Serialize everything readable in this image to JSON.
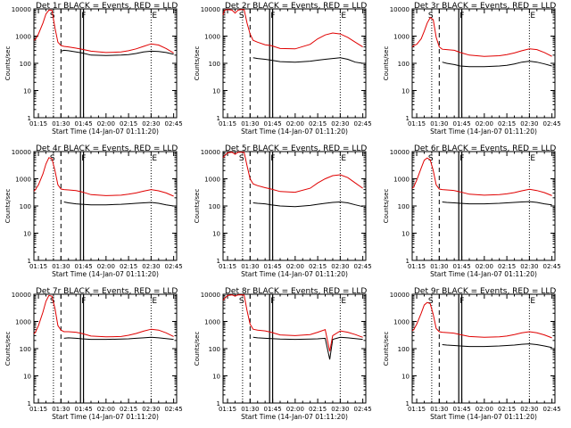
{
  "page": {
    "background": "#ffffff"
  },
  "colors": {
    "events": "#000000",
    "lld": "#e00000",
    "axes": "#000000"
  },
  "common": {
    "xlabel": "Start Time (14-Jan-07 01:11:20)",
    "ylabel": "Counts/sec",
    "xticks": [
      "01:15",
      "01:30",
      "01:45",
      "02:00",
      "02:15",
      "02:30",
      "02:45"
    ],
    "yticks": [
      "1",
      "10",
      "100",
      "1000",
      "10000"
    ],
    "marker_labels": [
      "S",
      "F",
      "E"
    ]
  },
  "chart_data": [
    {
      "type": "line",
      "title": "Det 1r BLACK = Events, RED = LLD",
      "xlim": [
        "01:12",
        "02:47"
      ],
      "ylim": [
        1,
        10000
      ],
      "yscale": "log",
      "x": [
        "01:12",
        "01:13",
        "01:15",
        "01:18",
        "01:20",
        "01:22",
        "01:24",
        "01:26",
        "01:28",
        "01:30",
        "01:32",
        "01:35",
        "01:40",
        "01:44",
        "01:50",
        "02:00",
        "02:10",
        "02:15",
        "02:20",
        "02:25",
        "02:30",
        "02:35",
        "02:40",
        "02:45"
      ],
      "series": [
        {
          "name": "Events",
          "values": [
            null,
            null,
            null,
            null,
            null,
            null,
            null,
            null,
            null,
            280,
            300,
            290,
            260,
            240,
            200,
            195,
            200,
            210,
            230,
            260,
            280,
            270,
            250,
            215
          ]
        },
        {
          "name": "LLD",
          "values": [
            700,
            750,
            1200,
            3000,
            6500,
            9000,
            9000,
            2000,
            600,
            450,
            420,
            400,
            360,
            330,
            280,
            250,
            260,
            290,
            340,
            420,
            520,
            470,
            350,
            240
          ]
        }
      ],
      "vlines": {
        "dashed": "01:30",
        "solid": [
          "01:43",
          "01:45"
        ],
        "dotted": [
          "01:25",
          "02:30"
        ]
      }
    },
    {
      "type": "line",
      "title": "Det 2r BLACK = Events, RED = LLD",
      "xlim": [
        "01:12",
        "02:47"
      ],
      "ylim": [
        1,
        10000
      ],
      "yscale": "log",
      "x": [
        "01:12",
        "01:13",
        "01:15",
        "01:18",
        "01:20",
        "01:22",
        "01:24",
        "01:26",
        "01:28",
        "01:30",
        "01:32",
        "01:35",
        "01:40",
        "01:44",
        "01:50",
        "02:00",
        "02:10",
        "02:15",
        "02:20",
        "02:25",
        "02:30",
        "02:35",
        "02:40",
        "02:45"
      ],
      "series": [
        {
          "name": "Events",
          "values": [
            null,
            null,
            null,
            null,
            null,
            null,
            null,
            null,
            null,
            null,
            160,
            150,
            140,
            130,
            115,
            110,
            120,
            130,
            140,
            150,
            160,
            140,
            110,
            100
          ]
        },
        {
          "name": "LLD",
          "values": [
            6000,
            9000,
            9500,
            9000,
            7000,
            9000,
            9500,
            9500,
            3000,
            1200,
            700,
            600,
            480,
            450,
            350,
            340,
            500,
            800,
            1100,
            1300,
            1200,
            900,
            600,
            400
          ]
        }
      ],
      "vlines": {
        "dashed": "01:30",
        "solid": [
          "01:43",
          "01:45"
        ],
        "dotted": [
          "01:25",
          "02:30"
        ]
      }
    },
    {
      "type": "line",
      "title": "Det 3r BLACK = Events, RED = LLD",
      "xlim": [
        "01:12",
        "02:47"
      ],
      "ylim": [
        1,
        10000
      ],
      "yscale": "log",
      "x": [
        "01:12",
        "01:13",
        "01:15",
        "01:18",
        "01:20",
        "01:22",
        "01:24",
        "01:26",
        "01:28",
        "01:30",
        "01:32",
        "01:35",
        "01:40",
        "01:44",
        "01:50",
        "02:00",
        "02:10",
        "02:15",
        "02:20",
        "02:25",
        "02:30",
        "02:35",
        "02:40",
        "02:45"
      ],
      "series": [
        {
          "name": "Events",
          "values": [
            null,
            null,
            null,
            null,
            null,
            null,
            null,
            null,
            null,
            null,
            110,
            100,
            90,
            80,
            75,
            75,
            80,
            85,
            95,
            110,
            120,
            110,
            95,
            80
          ]
        },
        {
          "name": "LLD",
          "values": [
            400,
            450,
            500,
            800,
            1500,
            3000,
            4800,
            4000,
            900,
            400,
            330,
            320,
            300,
            250,
            200,
            180,
            190,
            210,
            240,
            290,
            340,
            320,
            250,
            180
          ]
        }
      ],
      "vlines": {
        "dashed": "01:30",
        "solid": [
          "01:43",
          "01:45"
        ],
        "dotted": [
          "01:25",
          "02:30"
        ]
      }
    },
    {
      "type": "line",
      "title": "Det 4r BLACK = Events, RED = LLD",
      "xlim": [
        "01:12",
        "02:47"
      ],
      "ylim": [
        1,
        10000
      ],
      "yscale": "log",
      "x": [
        "01:12",
        "01:13",
        "01:15",
        "01:18",
        "01:20",
        "01:22",
        "01:24",
        "01:26",
        "01:28",
        "01:30",
        "01:32",
        "01:35",
        "01:40",
        "01:44",
        "01:50",
        "02:00",
        "02:10",
        "02:15",
        "02:20",
        "02:25",
        "02:30",
        "02:35",
        "02:40",
        "02:45"
      ],
      "series": [
        {
          "name": "Events",
          "values": [
            null,
            null,
            null,
            null,
            null,
            null,
            null,
            null,
            null,
            null,
            140,
            130,
            120,
            115,
            110,
            110,
            115,
            120,
            125,
            130,
            135,
            125,
            110,
            100
          ]
        },
        {
          "name": "LLD",
          "values": [
            350,
            400,
            600,
            1500,
            3500,
            6000,
            5500,
            2000,
            600,
            420,
            400,
            390,
            370,
            330,
            260,
            240,
            250,
            270,
            300,
            350,
            400,
            360,
            300,
            230
          ]
        }
      ],
      "vlines": {
        "dashed": "01:30",
        "solid": [
          "01:43",
          "01:45"
        ],
        "dotted": [
          "01:25",
          "02:30"
        ]
      }
    },
    {
      "type": "line",
      "title": "Det 5r BLACK = Events, RED = LLD",
      "xlim": [
        "01:12",
        "02:47"
      ],
      "ylim": [
        1,
        10000
      ],
      "yscale": "log",
      "x": [
        "01:12",
        "01:13",
        "01:15",
        "01:18",
        "01:20",
        "01:22",
        "01:24",
        "01:26",
        "01:28",
        "01:30",
        "01:32",
        "01:35",
        "01:40",
        "01:44",
        "01:50",
        "02:00",
        "02:10",
        "02:15",
        "02:20",
        "02:25",
        "02:30",
        "02:35",
        "02:40",
        "02:45"
      ],
      "series": [
        {
          "name": "Events",
          "values": [
            null,
            null,
            null,
            null,
            null,
            null,
            null,
            null,
            null,
            null,
            130,
            125,
            120,
            110,
            100,
            95,
            105,
            115,
            125,
            135,
            140,
            130,
            110,
            95
          ]
        },
        {
          "name": "LLD",
          "values": [
            6000,
            7000,
            9000,
            9500,
            8000,
            9500,
            9500,
            9500,
            3000,
            1000,
            650,
            560,
            470,
            420,
            340,
            320,
            450,
            700,
            1000,
            1300,
            1400,
            1100,
            700,
            450
          ]
        }
      ],
      "vlines": {
        "dashed": "01:30",
        "solid": [
          "01:43",
          "01:45"
        ],
        "dotted": [
          "01:25",
          "02:30"
        ]
      }
    },
    {
      "type": "line",
      "title": "Det 6r BLACK = Events, RED = LLD",
      "xlim": [
        "01:12",
        "02:47"
      ],
      "ylim": [
        1,
        10000
      ],
      "yscale": "log",
      "x": [
        "01:12",
        "01:13",
        "01:15",
        "01:18",
        "01:20",
        "01:22",
        "01:24",
        "01:26",
        "01:28",
        "01:30",
        "01:32",
        "01:35",
        "01:40",
        "01:44",
        "01:50",
        "02:00",
        "02:10",
        "02:15",
        "02:20",
        "02:25",
        "02:30",
        "02:35",
        "02:40",
        "02:45"
      ],
      "series": [
        {
          "name": "Events",
          "values": [
            null,
            null,
            null,
            null,
            null,
            null,
            null,
            null,
            null,
            null,
            140,
            135,
            130,
            125,
            120,
            120,
            125,
            130,
            135,
            140,
            145,
            135,
            120,
            110
          ]
        },
        {
          "name": "LLD",
          "values": [
            450,
            500,
            900,
            2500,
            4800,
            5800,
            5000,
            2000,
            600,
            420,
            400,
            390,
            370,
            330,
            270,
            250,
            260,
            280,
            310,
            360,
            410,
            370,
            310,
            240
          ]
        }
      ],
      "vlines": {
        "dashed": "01:30",
        "solid": [
          "01:43",
          "01:45"
        ],
        "dotted": [
          "01:25",
          "02:30"
        ]
      }
    },
    {
      "type": "line",
      "title": "Det 7r BLACK = Events, RED = LLD",
      "xlim": [
        "01:12",
        "02:47"
      ],
      "ylim": [
        1,
        10000
      ],
      "yscale": "log",
      "x": [
        "01:12",
        "01:13",
        "01:15",
        "01:18",
        "01:20",
        "01:22",
        "01:24",
        "01:26",
        "01:28",
        "01:30",
        "01:32",
        "01:35",
        "01:40",
        "01:44",
        "01:50",
        "02:00",
        "02:10",
        "02:15",
        "02:20",
        "02:25",
        "02:30",
        "02:35",
        "02:40",
        "02:45"
      ],
      "series": [
        {
          "name": "Events",
          "values": [
            null,
            null,
            null,
            null,
            null,
            null,
            null,
            null,
            null,
            null,
            240,
            250,
            240,
            230,
            220,
            220,
            225,
            230,
            240,
            250,
            260,
            250,
            235,
            220
          ]
        },
        {
          "name": "LLD",
          "values": [
            350,
            400,
            700,
            2200,
            5500,
            9000,
            8500,
            3000,
            700,
            480,
            420,
            420,
            400,
            360,
            290,
            270,
            280,
            310,
            360,
            440,
            520,
            480,
            380,
            280
          ]
        }
      ],
      "vlines": {
        "dashed": "01:30",
        "solid": [
          "01:43",
          "01:45"
        ],
        "dotted": [
          "01:25",
          "02:30"
        ]
      }
    },
    {
      "type": "line",
      "title": "Det 8r BLACK = Events, RED = LLD",
      "xlim": [
        "01:12",
        "02:47"
      ],
      "ylim": [
        1,
        10000
      ],
      "yscale": "log",
      "x": [
        "01:12",
        "01:13",
        "01:15",
        "01:18",
        "01:20",
        "01:22",
        "01:24",
        "01:26",
        "01:28",
        "01:30",
        "01:32",
        "01:35",
        "01:40",
        "01:44",
        "01:50",
        "02:00",
        "02:10",
        "02:15",
        "02:20",
        "02:23",
        "02:25",
        "02:30",
        "02:35",
        "02:40",
        "02:45"
      ],
      "series": [
        {
          "name": "Events",
          "values": [
            null,
            null,
            null,
            null,
            null,
            null,
            null,
            null,
            null,
            null,
            260,
            250,
            240,
            235,
            225,
            220,
            225,
            230,
            240,
            40,
            220,
            260,
            250,
            235,
            220
          ]
        },
        {
          "name": "LLD",
          "values": [
            6000,
            7000,
            9000,
            9500,
            8500,
            9500,
            9500,
            9500,
            2500,
            800,
            520,
            480,
            450,
            400,
            320,
            300,
            330,
            400,
            500,
            80,
            300,
            450,
            400,
            330,
            260
          ]
        }
      ],
      "vlines": {
        "dashed": "01:30",
        "solid": [
          "01:43",
          "01:45"
        ],
        "dotted": [
          "01:25",
          "02:30"
        ]
      }
    },
    {
      "type": "line",
      "title": "Det 9r BLACK = Events, RED = LLD",
      "xlim": [
        "01:12",
        "02:47"
      ],
      "ylim": [
        1,
        10000
      ],
      "yscale": "log",
      "x": [
        "01:12",
        "01:13",
        "01:15",
        "01:18",
        "01:20",
        "01:22",
        "01:24",
        "01:26",
        "01:28",
        "01:30",
        "01:32",
        "01:35",
        "01:40",
        "01:44",
        "01:50",
        "02:00",
        "02:10",
        "02:15",
        "02:20",
        "02:25",
        "02:30",
        "02:35",
        "02:40",
        "02:45"
      ],
      "series": [
        {
          "name": "Events",
          "values": [
            null,
            null,
            null,
            null,
            null,
            null,
            null,
            null,
            null,
            null,
            140,
            135,
            130,
            125,
            120,
            120,
            125,
            130,
            135,
            145,
            150,
            140,
            125,
            110
          ]
        },
        {
          "name": "LLD",
          "values": [
            450,
            500,
            800,
            2000,
            4000,
            5000,
            4500,
            1800,
            550,
            420,
            400,
            390,
            370,
            330,
            280,
            260,
            270,
            290,
            330,
            380,
            420,
            380,
            320,
            250
          ]
        }
      ],
      "vlines": {
        "dashed": "01:30",
        "solid": [
          "01:43",
          "01:45"
        ],
        "dotted": [
          "01:25",
          "02:30"
        ]
      }
    }
  ]
}
